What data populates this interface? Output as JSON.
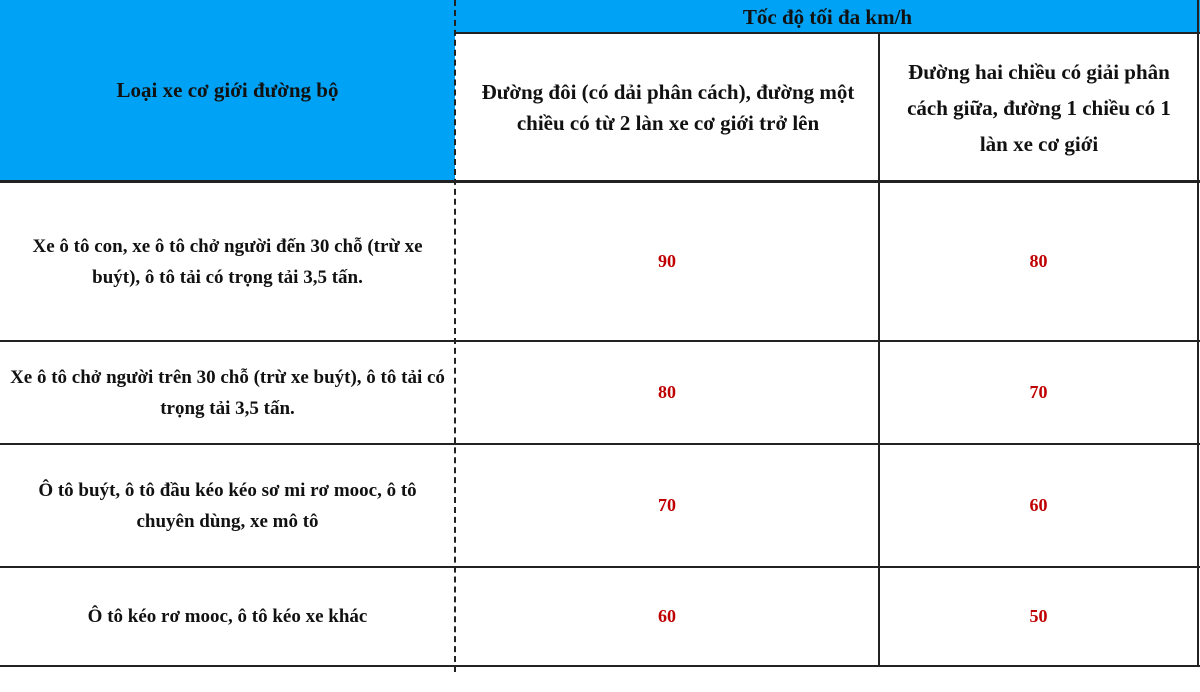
{
  "table": {
    "header": {
      "vehicle_type": "Loại xe cơ giới đường bộ",
      "max_speed": "Tốc độ tối đa km/h",
      "col_divided": "Đường đôi (có dải phân cách), đường một chiều có từ 2 làn xe cơ giới trở lên",
      "col_undivided": "Đường hai chiều có giải phân cách giữa, đường 1 chiều có 1 làn xe cơ giới"
    },
    "rows": [
      {
        "vehicle": "Xe ô tô con, xe ô tô chở người đến 30 chỗ (trừ xe buýt), ô tô tải có trọng tải 3,5 tấn.",
        "divided": "90",
        "undivided": "80"
      },
      {
        "vehicle": "Xe ô tô chở người trên 30 chỗ (trừ xe buýt), ô tô tải có trọng tải 3,5 tấn.",
        "divided": "80",
        "undivided": "70"
      },
      {
        "vehicle": "Ô tô buýt, ô tô đầu kéo kéo sơ mi rơ mooc, ô tô chuyên dùng, xe mô tô",
        "divided": "70",
        "undivided": "60"
      },
      {
        "vehicle": "Ô tô kéo rơ mooc, ô tô kéo xe khác",
        "divided": "60",
        "undivided": "50"
      }
    ],
    "colors": {
      "header_bg": "#00a2f5",
      "value_text": "#c00000"
    }
  }
}
